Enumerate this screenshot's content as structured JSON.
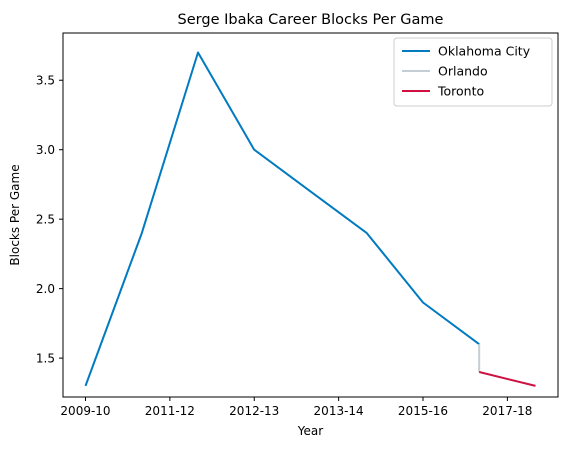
{
  "chart_data": {
    "type": "line",
    "title": "Serge Ibaka Career Blocks Per Game",
    "xlabel": "Year",
    "ylabel": "Blocks Per Game",
    "x_tick_labels": [
      "2009-10",
      "2011-12",
      "2012-13",
      "2013-14",
      "2015-16",
      "2017-18"
    ],
    "x_ticks": [
      0,
      1.5,
      3,
      4.5,
      6,
      7.5
    ],
    "xlim": [
      -0.4,
      8.4
    ],
    "ylim": [
      1.22,
      3.84
    ],
    "y_ticks": [
      1.5,
      2.0,
      2.5,
      3.0,
      3.5
    ],
    "y_tick_labels": [
      "1.5",
      "2.0",
      "2.5",
      "3.0",
      "3.5"
    ],
    "grid": false,
    "legend_position": "top-right",
    "series": [
      {
        "name": "Oklahoma City",
        "color": "#007ac1",
        "x": [
          0,
          1,
          2,
          3,
          4,
          5,
          6,
          7
        ],
        "y": [
          1.3,
          2.4,
          3.7,
          3.0,
          2.7,
          2.4,
          1.9,
          1.6
        ]
      },
      {
        "name": "Orlando",
        "color": "#c4ced4",
        "x": [
          7,
          7
        ],
        "y": [
          1.6,
          1.4
        ]
      },
      {
        "name": "Toronto",
        "color": "#ce1141",
        "x": [
          7,
          8
        ],
        "y": [
          1.4,
          1.3
        ]
      }
    ]
  }
}
